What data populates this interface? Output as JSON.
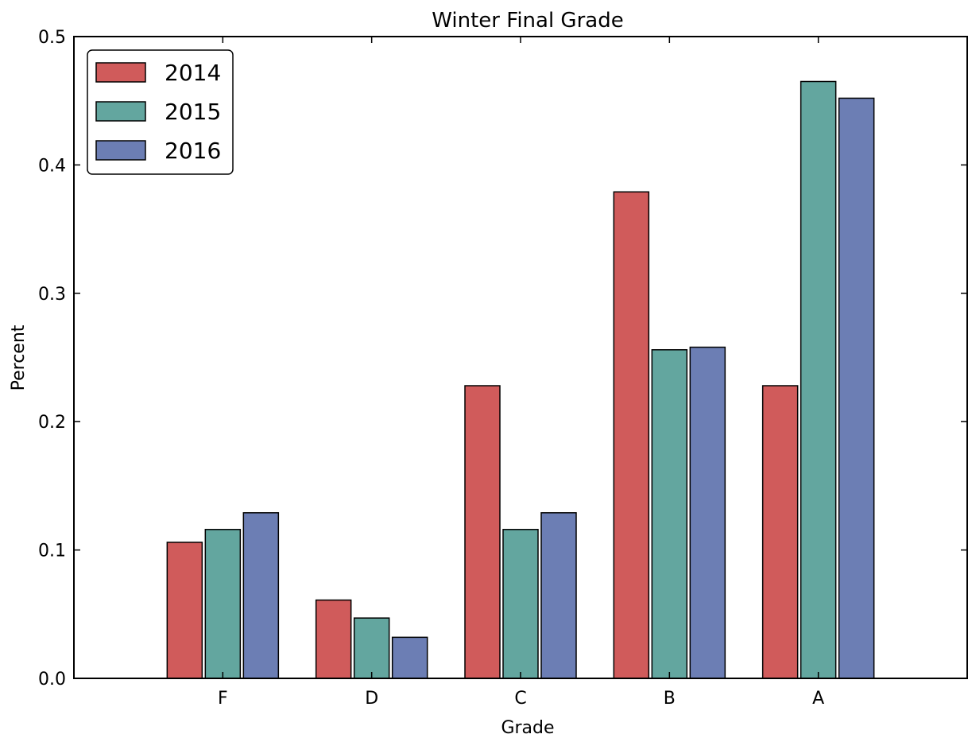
{
  "chart_data": {
    "type": "bar",
    "title": "Winter Final Grade",
    "xlabel": "Grade",
    "ylabel": "Percent",
    "categories": [
      "F",
      "D",
      "C",
      "B",
      "A"
    ],
    "ylim": [
      0,
      0.5
    ],
    "yticks": [
      "0.0",
      "0.1",
      "0.2",
      "0.3",
      "0.4",
      "0.5"
    ],
    "grid": false,
    "legend_position": "top-left",
    "series": [
      {
        "name": "2014",
        "color": "#d05b5b",
        "values": [
          0.106,
          0.061,
          0.228,
          0.379,
          0.228
        ]
      },
      {
        "name": "2015",
        "color": "#63a69f",
        "values": [
          0.116,
          0.047,
          0.116,
          0.256,
          0.465
        ]
      },
      {
        "name": "2016",
        "color": "#6c7eb4",
        "values": [
          0.129,
          0.032,
          0.129,
          0.258,
          0.452
        ]
      }
    ]
  }
}
